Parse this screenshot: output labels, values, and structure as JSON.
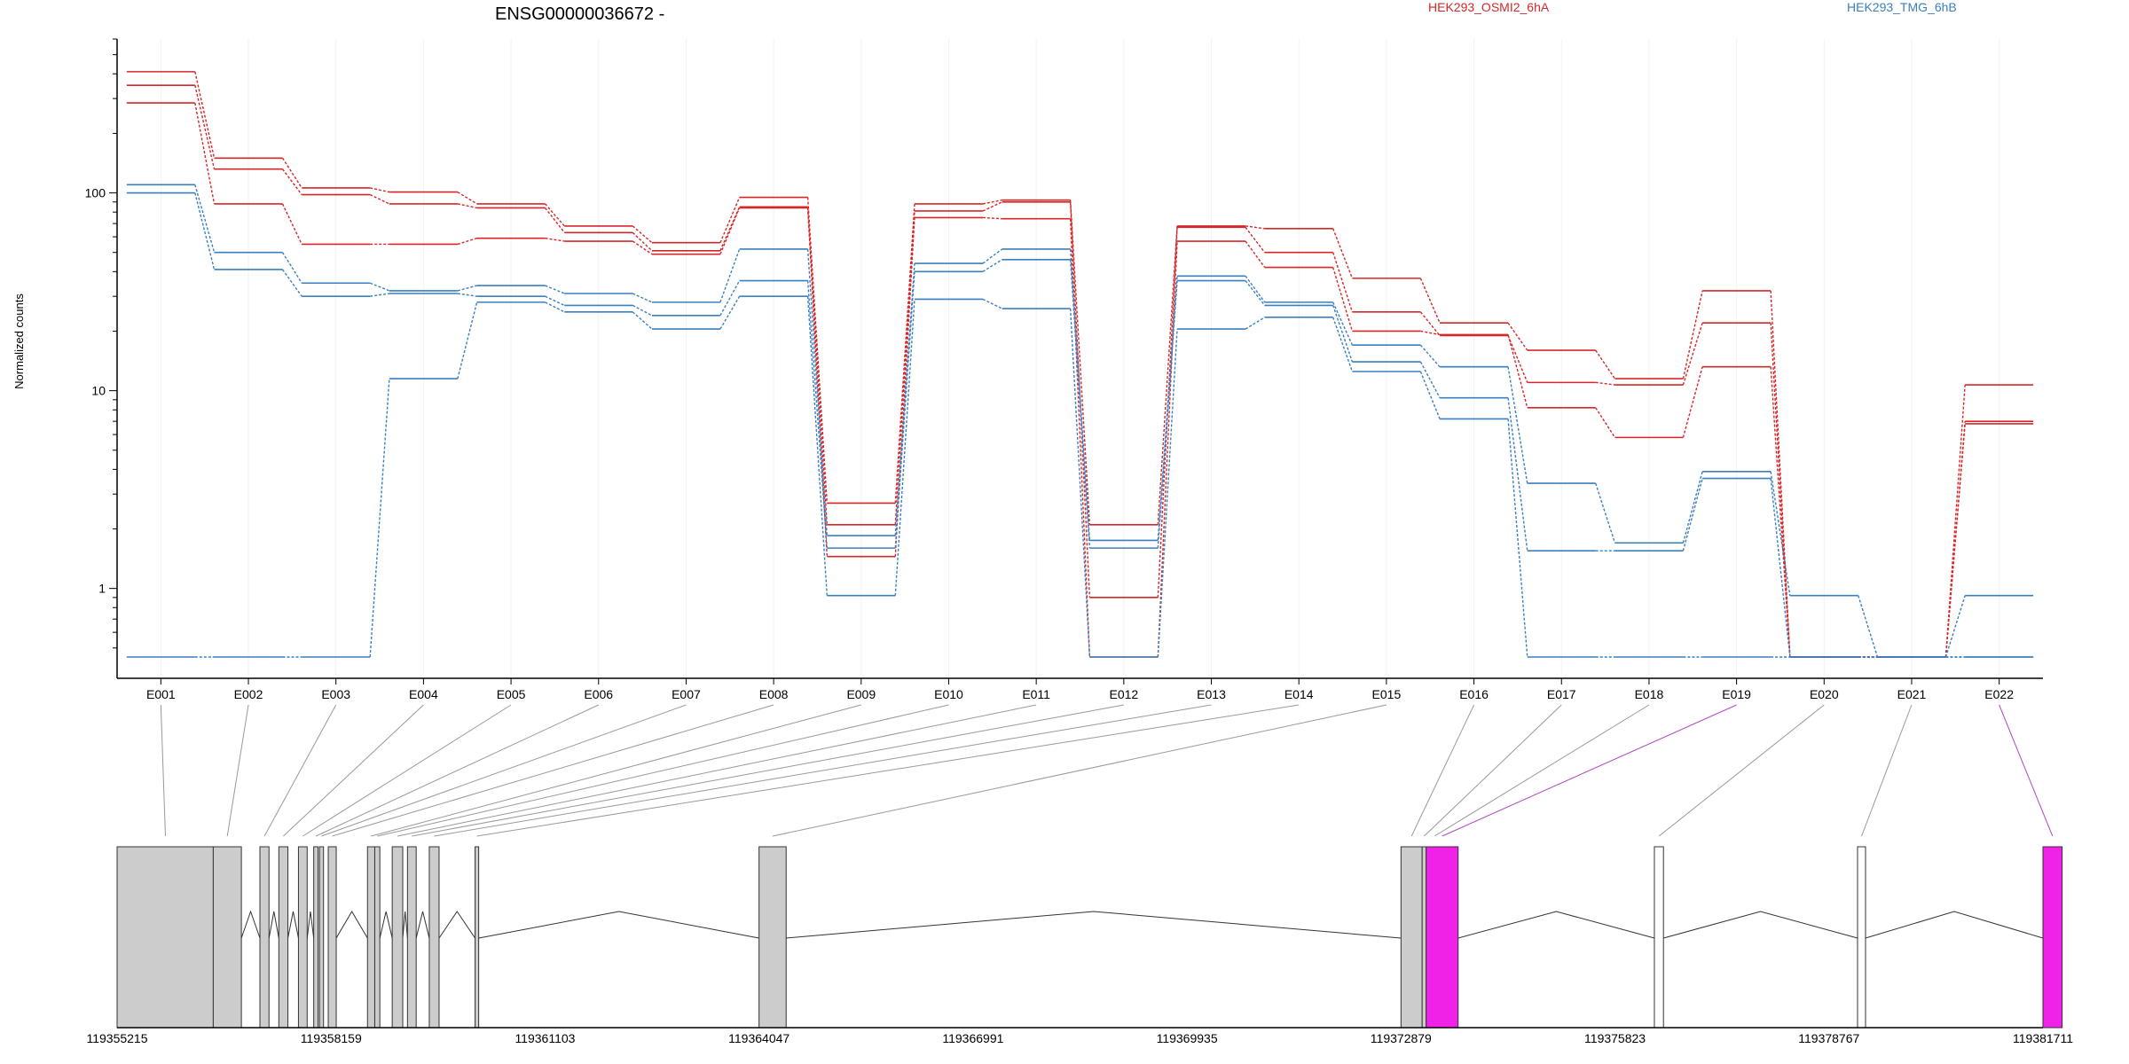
{
  "chart_data": {
    "type": "line",
    "title": "ENSG00000036672 -",
    "ylabel": "Normalized counts",
    "xlabel": "",
    "y_scale": "log",
    "ylim": [
      0.45,
      600
    ],
    "y_ticks": [
      {
        "value": 1,
        "label": "1"
      },
      {
        "value": 10,
        "label": "10"
      },
      {
        "value": 100,
        "label": "100"
      }
    ],
    "categories": [
      "E001",
      "E002",
      "E003",
      "E004",
      "E005",
      "E006",
      "E007",
      "E008",
      "E009",
      "E010",
      "E011",
      "E012",
      "E013",
      "E014",
      "E015",
      "E016",
      "E017",
      "E018",
      "E019",
      "E020",
      "E021",
      "E022"
    ],
    "legend": [
      {
        "label": "HEK293_OSMI2_6hA",
        "color": "#d62728"
      },
      {
        "label": "HEK293_TMG_6hB",
        "color": "#3a7fbf"
      }
    ],
    "series": [
      {
        "group": "HEK293_OSMI2_6hA",
        "color": "#d62728",
        "values": [
          410,
          150,
          106,
          101,
          88,
          68,
          56,
          95,
          2.7,
          88,
          92,
          2.1,
          68,
          66,
          37,
          22,
          16,
          11.5,
          32,
          0.45,
          0.45,
          10.7
        ]
      },
      {
        "group": "HEK293_OSMI2_6hA",
        "color": "#d62728",
        "values": [
          350,
          132,
          98,
          88,
          84,
          63,
          51,
          85,
          2.1,
          81,
          90,
          0.9,
          67,
          50,
          25,
          19,
          11,
          10.7,
          22,
          0.45,
          0.45,
          7.0
        ]
      },
      {
        "group": "HEK293_OSMI2_6hA",
        "color": "#d62728",
        "values": [
          285,
          88,
          55,
          55,
          59,
          57,
          49,
          84,
          1.45,
          75,
          74,
          0.45,
          57,
          42,
          20,
          19.2,
          8.2,
          5.8,
          13.2,
          0.45,
          0.45,
          6.8
        ]
      },
      {
        "group": "HEK293_TMG_6hB",
        "color": "#3a7fbf",
        "values": [
          110,
          50,
          35,
          32,
          34,
          31,
          28,
          52,
          1.85,
          44,
          52,
          1.75,
          38,
          28,
          17,
          13.2,
          3.4,
          1.7,
          3.9,
          0.92,
          0.45,
          0.92
        ]
      },
      {
        "group": "HEK293_TMG_6hB",
        "color": "#3a7fbf",
        "values": [
          100,
          41,
          30,
          31,
          30,
          27,
          24,
          36,
          1.6,
          40,
          46,
          1.6,
          36,
          27,
          14,
          9.2,
          1.55,
          1.55,
          3.6,
          0.45,
          0.45,
          0.45
        ]
      },
      {
        "group": "HEK293_TMG_6hB",
        "color": "#3a7fbf",
        "values": [
          0.45,
          0.45,
          0.45,
          11.5,
          28,
          25,
          20.5,
          30,
          0.92,
          29,
          26,
          0.45,
          20.5,
          23.5,
          12.5,
          7.2,
          0.45,
          0.45,
          0.45,
          0.45,
          0.45,
          0.45
        ]
      }
    ],
    "gene_model": {
      "coordinate_ticks": [
        "119355215",
        "119358159",
        "119361103",
        "119364047",
        "119366991",
        "119369935",
        "119372879",
        "119375823",
        "119378767",
        "119381711"
      ],
      "exons": [
        {
          "start": 119355215,
          "end": 119356538,
          "fill": "#cccccc"
        },
        {
          "start": 119356538,
          "end": 119356925,
          "fill": "#cccccc"
        },
        {
          "start": 119357180,
          "end": 119357305,
          "fill": "#cccccc"
        },
        {
          "start": 119357440,
          "end": 119357565,
          "fill": "#cccccc"
        },
        {
          "start": 119357710,
          "end": 119357830,
          "fill": "#cccccc"
        },
        {
          "start": 119357920,
          "end": 119357980,
          "fill": "#cccccc"
        },
        {
          "start": 119358000,
          "end": 119358055,
          "fill": "#cccccc"
        },
        {
          "start": 119358120,
          "end": 119358230,
          "fill": "#cccccc"
        },
        {
          "start": 119358660,
          "end": 119358760,
          "fill": "#cccccc"
        },
        {
          "start": 119358760,
          "end": 119358830,
          "fill": "#cccccc"
        },
        {
          "start": 119359000,
          "end": 119359145,
          "fill": "#cccccc"
        },
        {
          "start": 119359210,
          "end": 119359330,
          "fill": "#cccccc"
        },
        {
          "start": 119359510,
          "end": 119359645,
          "fill": "#cccccc"
        },
        {
          "start": 119360140,
          "end": 119360190,
          "fill": "#cccccc"
        },
        {
          "start": 119364047,
          "end": 119364420,
          "fill": "#cccccc"
        },
        {
          "start": 119372879,
          "end": 119373170,
          "fill": "#cccccc"
        },
        {
          "start": 119373170,
          "end": 119373225,
          "fill": "#cccccc"
        },
        {
          "start": 119373225,
          "end": 119373665,
          "fill": "#f022e8"
        },
        {
          "start": 119376365,
          "end": 119376490,
          "fill": "#ffffff"
        },
        {
          "start": 119379160,
          "end": 119379270,
          "fill": "#ffffff"
        },
        {
          "start": 119381711,
          "end": 119381975,
          "fill": "#f022e8"
        }
      ],
      "exon_mapping": [
        {
          "exon": "E001",
          "anchor": 119355880,
          "color": "#999999"
        },
        {
          "exon": "E002",
          "anchor": 119356731,
          "color": "#999999"
        },
        {
          "exon": "E003",
          "anchor": 119357242,
          "color": "#999999"
        },
        {
          "exon": "E004",
          "anchor": 119357502,
          "color": "#999999"
        },
        {
          "exon": "E005",
          "anchor": 119357770,
          "color": "#999999"
        },
        {
          "exon": "E006",
          "anchor": 119357950,
          "color": "#999999"
        },
        {
          "exon": "E007",
          "anchor": 119358027,
          "color": "#999999"
        },
        {
          "exon": "E008",
          "anchor": 119358175,
          "color": "#999999"
        },
        {
          "exon": "E009",
          "anchor": 119358710,
          "color": "#999999"
        },
        {
          "exon": "E010",
          "anchor": 119358795,
          "color": "#999999"
        },
        {
          "exon": "E011",
          "anchor": 119359072,
          "color": "#999999"
        },
        {
          "exon": "E012",
          "anchor": 119359270,
          "color": "#999999"
        },
        {
          "exon": "E013",
          "anchor": 119359578,
          "color": "#999999"
        },
        {
          "exon": "E014",
          "anchor": 119360165,
          "color": "#999999"
        },
        {
          "exon": "E015",
          "anchor": 119364234,
          "color": "#999999"
        },
        {
          "exon": "E016",
          "anchor": 119373024,
          "color": "#999999"
        },
        {
          "exon": "E017",
          "anchor": 119373197,
          "color": "#999999"
        },
        {
          "exon": "E018",
          "anchor": 119373340,
          "color": "#999999"
        },
        {
          "exon": "E019",
          "anchor": 119373445,
          "color": "#b048c0"
        },
        {
          "exon": "E020",
          "anchor": 119376428,
          "color": "#999999"
        },
        {
          "exon": "E021",
          "anchor": 119379215,
          "color": "#999999"
        },
        {
          "exon": "E022",
          "anchor": 119381843,
          "color": "#b048c0"
        }
      ],
      "introns": [
        {
          "from": 119356925,
          "to": 119357180
        },
        {
          "from": 119357305,
          "to": 119357440
        },
        {
          "from": 119357565,
          "to": 119357710
        },
        {
          "from": 119357830,
          "to": 119357920
        },
        {
          "from": 119358230,
          "to": 119358660
        },
        {
          "from": 119358830,
          "to": 119359000
        },
        {
          "from": 119359145,
          "to": 119359210
        },
        {
          "from": 119359330,
          "to": 119359510
        },
        {
          "from": 119359645,
          "to": 119360140
        },
        {
          "from": 119360190,
          "to": 119364047
        },
        {
          "from": 119364420,
          "to": 119372879
        },
        {
          "from": 119373665,
          "to": 119376365
        },
        {
          "from": 119376490,
          "to": 119379160
        },
        {
          "from": 119379270,
          "to": 119381711
        }
      ]
    }
  }
}
